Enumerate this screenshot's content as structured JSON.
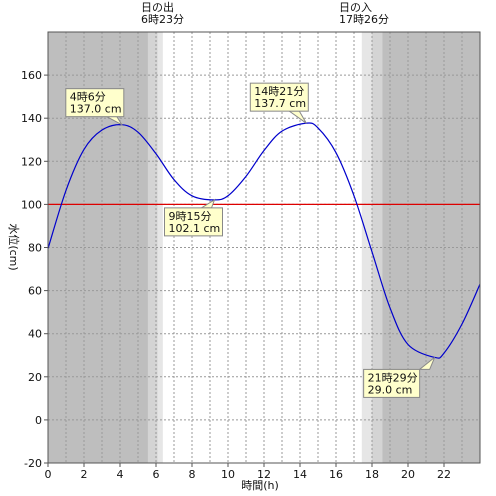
{
  "chart_data": {
    "type": "line",
    "xlabel": "時間(h)",
    "ylabel": "水位(cm)",
    "xlim": [
      0,
      24
    ],
    "ylim": [
      -20,
      180
    ],
    "x_ticks": [
      0,
      2,
      4,
      6,
      8,
      10,
      12,
      14,
      16,
      18,
      20,
      22
    ],
    "y_ticks": [
      -20,
      0,
      20,
      40,
      60,
      80,
      100,
      120,
      140,
      160
    ],
    "reference_line": {
      "value": 100,
      "color": "#dd0000"
    },
    "sunrise": {
      "label": "日の出",
      "time_label": "6時23分",
      "hour": 6.383
    },
    "sunset": {
      "label": "日の入",
      "time_label": "17時26分",
      "hour": 17.433
    },
    "series": [
      {
        "color": "#0000cc",
        "points": [
          [
            0,
            79.5
          ],
          [
            1,
            106.5
          ],
          [
            2,
            125.5
          ],
          [
            3,
            134.5
          ],
          [
            4.1,
            137.0
          ],
          [
            5,
            133.5
          ],
          [
            6,
            123.5
          ],
          [
            7,
            111.5
          ],
          [
            8,
            104
          ],
          [
            9.25,
            102.1
          ],
          [
            10,
            104
          ],
          [
            11,
            113
          ],
          [
            12,
            125
          ],
          [
            13,
            134
          ],
          [
            14.35,
            137.7
          ],
          [
            15,
            135.5
          ],
          [
            16,
            124
          ],
          [
            17,
            104
          ],
          [
            18,
            78
          ],
          [
            19,
            52
          ],
          [
            20,
            35
          ],
          [
            21.48,
            29.0
          ],
          [
            22,
            31
          ],
          [
            23,
            44.5
          ],
          [
            24,
            63
          ]
        ]
      }
    ],
    "annotations": [
      {
        "time_label": "4時6分",
        "value_label": "137.0 cm",
        "x": 4.1,
        "y": 137.0
      },
      {
        "time_label": "9時15分",
        "value_label": "102.1 cm",
        "x": 9.25,
        "y": 102.1
      },
      {
        "time_label": "14時21分",
        "value_label": "137.7 cm",
        "x": 14.35,
        "y": 137.7
      },
      {
        "time_label": "21時29分",
        "value_label": "29.0 cm",
        "x": 21.48,
        "y": 29.0
      }
    ]
  }
}
